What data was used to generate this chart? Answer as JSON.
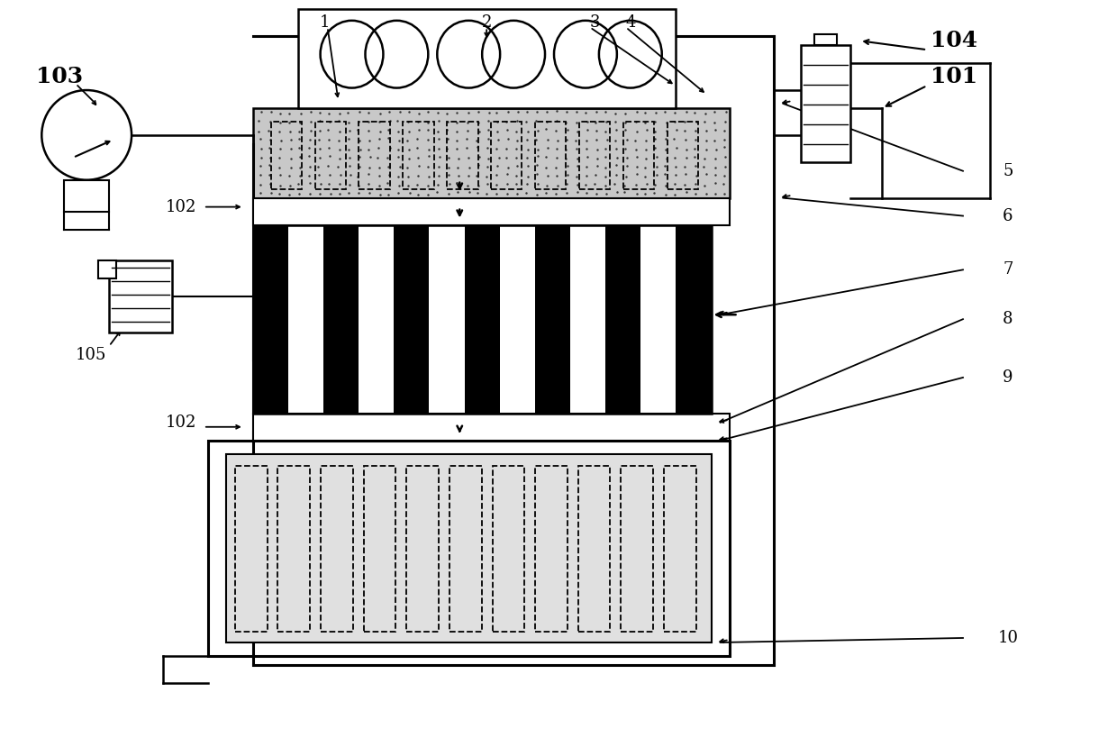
{
  "bg_color": "#ffffff",
  "lc": "#000000",
  "fig_width": 12.4,
  "fig_height": 8.19,
  "dpi": 100,
  "stipple_color": "#c8c8c8",
  "stipple_dot_color": "#555555",
  "bottom_fill": "#e0e0e0"
}
